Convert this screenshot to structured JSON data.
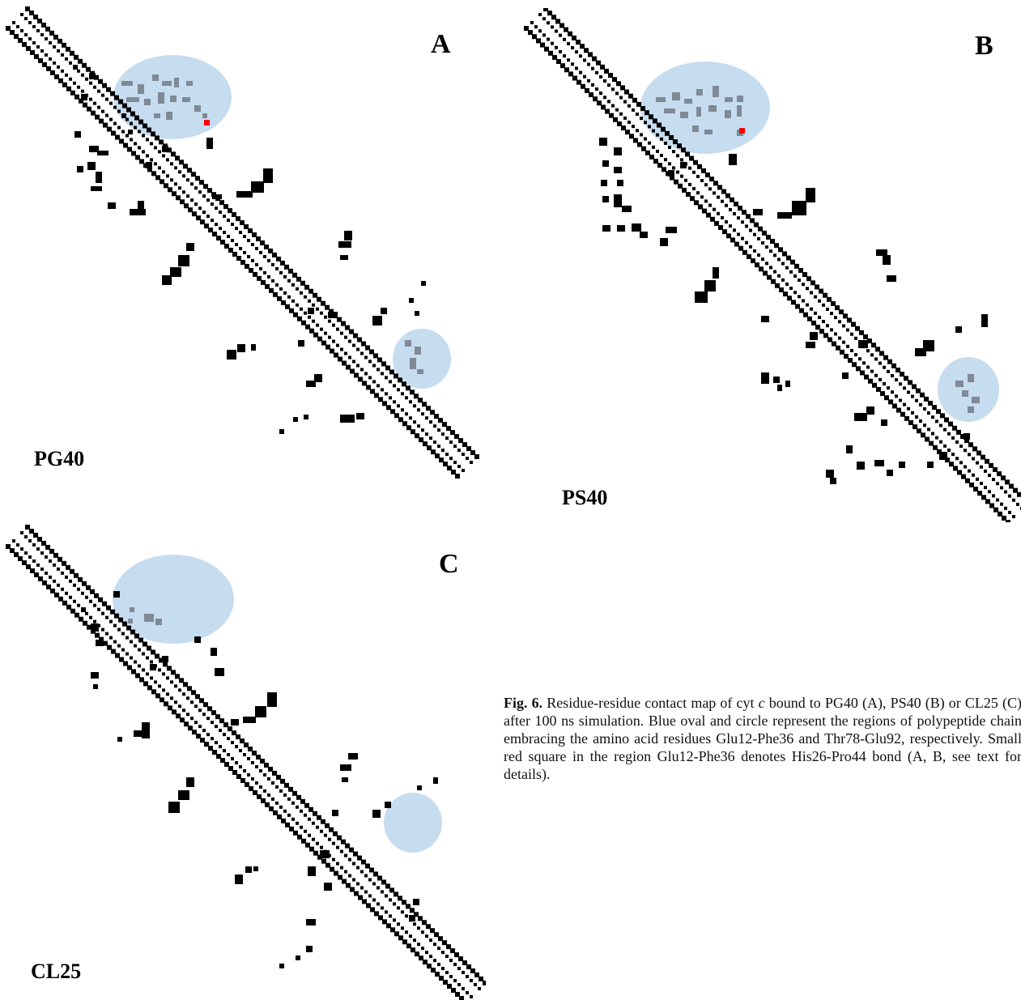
{
  "panels": [
    {
      "id": "A",
      "letter": "A",
      "name": "PG40",
      "highlight_red_square": true,
      "gray_in_circle": true
    },
    {
      "id": "B",
      "letter": "B",
      "name": "PS40",
      "highlight_red_square": true,
      "gray_in_circle": true
    },
    {
      "id": "C",
      "letter": "C",
      "name": "CL25",
      "highlight_red_square": false,
      "gray_in_circle": false
    }
  ],
  "caption": {
    "fig_label": "Fig. 6.",
    "text_before_italic": " Residue-residue contact map of cyt ",
    "italic": "c",
    "text_after_italic": " bound to PG40 (A), PS40 (B) or CL25 (C) after 100 ns simulation. Blue oval and circle represent the regions of polypeptide chain embracing the amino acid residues Glu12-Phe36 and Thr78-Glu92, respectively. Small red square in the region Glu12-Phe36 denotes His26-Pro44 bond (A, B, see text for details)."
  },
  "colors": {
    "contact": "#000000",
    "region_fill": "#c6dcef",
    "region_contact": "#7f8a96",
    "bond_marker": "#ff0000"
  }
}
